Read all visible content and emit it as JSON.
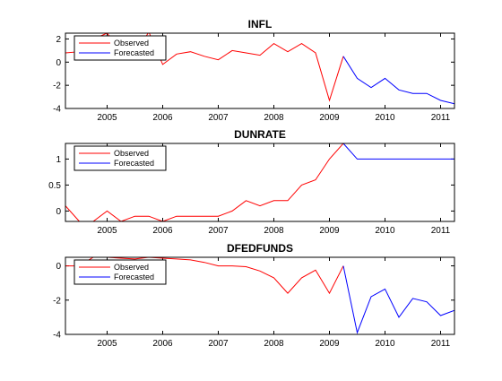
{
  "chart_data": [
    {
      "type": "line",
      "title": "INFL",
      "xlabel": "",
      "ylabel": "",
      "xlim": [
        2004.25,
        2011.25
      ],
      "ylim": [
        -4,
        2.5
      ],
      "xticks": [
        2005,
        2006,
        2007,
        2008,
        2009,
        2010,
        2011
      ],
      "xtick_labels": [
        "2005",
        "2006",
        "2007",
        "2008",
        "2009",
        "2010",
        "2011"
      ],
      "yticks": [
        -4,
        -2,
        0,
        2
      ],
      "ytick_labels": [
        "-4",
        "-2",
        "0",
        "2"
      ],
      "legend": {
        "position": "top-left",
        "entries": [
          "Observed",
          "Forecasted"
        ]
      },
      "series": [
        {
          "name": "Observed",
          "color": "#ff0000",
          "x": [
            2004.25,
            2004.5,
            2004.75,
            2005.0,
            2005.25,
            2005.5,
            2005.75,
            2006.0,
            2006.25,
            2006.5,
            2006.75,
            2007.0,
            2007.25,
            2007.5,
            2007.75,
            2008.0,
            2008.25,
            2008.5,
            2008.75,
            2009.0,
            2009.25
          ],
          "y": [
            0.8,
            0.9,
            2.0,
            2.5,
            1.0,
            0.7,
            2.6,
            -0.2,
            0.7,
            0.9,
            0.5,
            0.2,
            1.0,
            0.8,
            0.6,
            1.6,
            0.9,
            1.6,
            0.8,
            -3.3,
            0.5
          ]
        },
        {
          "name": "Forecasted",
          "color": "#0000ff",
          "x": [
            2009.25,
            2009.5,
            2009.75,
            2010.0,
            2010.25,
            2010.5,
            2010.75,
            2011.0,
            2011.25
          ],
          "y": [
            0.5,
            -1.4,
            -2.2,
            -1.4,
            -2.4,
            -2.7,
            -2.7,
            -3.3,
            -3.6
          ]
        }
      ]
    },
    {
      "type": "line",
      "title": "DUNRATE",
      "xlabel": "",
      "ylabel": "",
      "xlim": [
        2004.25,
        2011.25
      ],
      "ylim": [
        -0.2,
        1.3
      ],
      "xticks": [
        2005,
        2006,
        2007,
        2008,
        2009,
        2010,
        2011
      ],
      "xtick_labels": [
        "2005",
        "2006",
        "2007",
        "2008",
        "2009",
        "2010",
        "2011"
      ],
      "yticks": [
        0,
        0.5,
        1
      ],
      "ytick_labels": [
        "0",
        "0.5",
        "1"
      ],
      "legend": {
        "position": "top-left",
        "entries": [
          "Observed",
          "Forecasted"
        ]
      },
      "series": [
        {
          "name": "Observed",
          "color": "#ff0000",
          "x": [
            2004.25,
            2004.5,
            2004.75,
            2005.0,
            2005.25,
            2005.5,
            2005.75,
            2006.0,
            2006.25,
            2006.5,
            2006.75,
            2007.0,
            2007.25,
            2007.5,
            2007.75,
            2008.0,
            2008.25,
            2008.5,
            2008.75,
            2009.0,
            2009.25
          ],
          "y": [
            0.1,
            -0.2,
            -0.2,
            0.0,
            -0.2,
            -0.1,
            -0.1,
            -0.2,
            -0.1,
            -0.1,
            -0.1,
            -0.1,
            0.0,
            0.2,
            0.1,
            0.2,
            0.2,
            0.5,
            0.6,
            1.0,
            1.3
          ]
        },
        {
          "name": "Forecasted",
          "color": "#0000ff",
          "x": [
            2009.25,
            2009.5,
            2009.75,
            2010.0,
            2010.25,
            2010.5,
            2010.75,
            2011.0,
            2011.25
          ],
          "y": [
            1.3,
            1.0,
            1.0,
            1.0,
            1.0,
            1.0,
            1.0,
            1.0,
            1.0
          ]
        }
      ]
    },
    {
      "type": "line",
      "title": "DFEDFUNDS",
      "xlabel": "",
      "ylabel": "",
      "xlim": [
        2004.25,
        2011.25
      ],
      "ylim": [
        -4,
        0.5
      ],
      "xticks": [
        2005,
        2006,
        2007,
        2008,
        2009,
        2010,
        2011
      ],
      "xtick_labels": [
        "2005",
        "2006",
        "2007",
        "2008",
        "2009",
        "2010",
        "2011"
      ],
      "yticks": [
        -4,
        -2,
        0
      ],
      "ytick_labels": [
        "-4",
        "-2",
        "0"
      ],
      "legend": {
        "position": "top-left",
        "entries": [
          "Observed",
          "Forecasted"
        ]
      },
      "series": [
        {
          "name": "Observed",
          "color": "#ff0000",
          "x": [
            2004.25,
            2004.5,
            2004.75,
            2005.0,
            2005.25,
            2005.5,
            2005.75,
            2006.0,
            2006.25,
            2006.5,
            2006.75,
            2007.0,
            2007.25,
            2007.5,
            2007.75,
            2008.0,
            2008.25,
            2008.5,
            2008.75,
            2009.0,
            2009.25
          ],
          "y": [
            0.0,
            0.0,
            0.5,
            0.5,
            0.45,
            0.4,
            0.5,
            0.45,
            0.4,
            0.35,
            0.2,
            0.0,
            0.0,
            -0.05,
            -0.3,
            -0.7,
            -1.6,
            -0.7,
            -0.25,
            -1.6,
            0.0
          ]
        },
        {
          "name": "Forecasted",
          "color": "#0000ff",
          "x": [
            2009.25,
            2009.5,
            2009.75,
            2010.0,
            2010.25,
            2010.5,
            2010.75,
            2011.0,
            2011.25
          ],
          "y": [
            0.0,
            -3.9,
            -1.8,
            -1.35,
            -3.0,
            -1.9,
            -2.1,
            -2.9,
            -2.6
          ]
        }
      ]
    }
  ]
}
